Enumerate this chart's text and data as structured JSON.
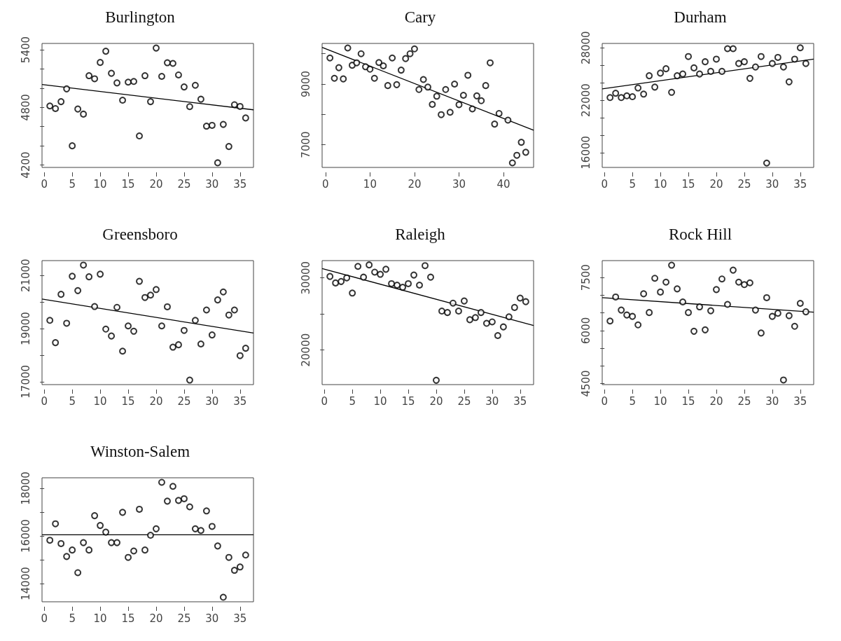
{
  "chart_data": [
    {
      "type": "scatter",
      "title": "Burlington",
      "grid": false,
      "x": [
        1,
        2,
        3,
        4,
        5,
        6,
        7,
        8,
        9,
        10,
        11,
        12,
        13,
        14,
        15,
        16,
        17,
        18,
        19,
        20,
        21,
        22,
        23,
        24,
        25,
        26,
        27,
        28,
        29,
        30,
        31,
        32,
        33,
        34,
        35,
        36
      ],
      "xlim": [
        -0.4,
        37.4
      ],
      "xticks": [
        0,
        5,
        10,
        15,
        20,
        25,
        30,
        35
      ],
      "ylim": [
        4175,
        5466
      ],
      "yticks": [
        4200,
        {
          "value": 4400,
          "label": null
        },
        {
          "value": 4600,
          "label": null
        },
        4800,
        {
          "value": 5000,
          "label": null
        },
        {
          "value": 5200,
          "label": null
        },
        5400
      ],
      "series": [
        {
          "color": "#000000",
          "marker": "circle",
          "values": [
            4815,
            4788,
            4860,
            4993,
            4400,
            4783,
            4730,
            5130,
            5098,
            5268,
            5385,
            5155,
            5055,
            4875,
            5063,
            5070,
            4503,
            5130,
            4860,
            5418,
            5123,
            5265,
            5258,
            5138,
            5013,
            4808,
            5030,
            4885,
            4605,
            4613,
            4223,
            4623,
            4393,
            4828,
            4810,
            4690
          ]
        },
        {
          "type": "line",
          "color": "#000000",
          "marker": "none",
          "x": [
            -0.4,
            37.4
          ],
          "values": [
            5039,
            4775
          ]
        }
      ]
    },
    {
      "type": "scatter",
      "title": "Cary",
      "grid": false,
      "x": [
        1,
        2,
        3,
        4,
        5,
        6,
        7,
        8,
        9,
        10,
        11,
        12,
        13,
        14,
        15,
        16,
        17,
        18,
        19,
        20,
        21,
        22,
        23,
        24,
        25,
        26,
        27,
        28,
        29,
        30,
        31,
        32,
        33,
        34,
        35,
        36,
        37,
        38,
        39,
        41,
        42,
        43,
        44,
        45
      ],
      "xlim": [
        -0.76,
        46.76
      ],
      "xticks": [
        0,
        10,
        20,
        30,
        40
      ],
      "ylim": [
        6250,
        10340
      ],
      "yticks": [
        7000,
        {
          "value": 8000,
          "label": null
        },
        9000,
        {
          "value": 10000,
          "label": null
        }
      ],
      "series": [
        {
          "color": "#000000",
          "marker": "circle",
          "values": [
            9860,
            9190,
            9540,
            9170,
            10190,
            9620,
            9700,
            10000,
            9570,
            9490,
            9190,
            9710,
            9600,
            8950,
            9860,
            8980,
            9460,
            9840,
            10000,
            10160,
            8820,
            9150,
            8900,
            8330,
            8600,
            7990,
            8820,
            8070,
            9000,
            8320,
            8630,
            9290,
            8180,
            8610,
            8450,
            8950,
            9700,
            7680,
            8030,
            7810,
            6400,
            6650,
            7080,
            6750
          ]
        },
        {
          "type": "line",
          "color": "#000000",
          "marker": "none",
          "x": [
            -0.76,
            46.76
          ],
          "values": [
            10210,
            7480
          ]
        }
      ]
    },
    {
      "type": "scatter",
      "title": "Durham",
      "grid": false,
      "x": [
        1,
        2,
        3,
        4,
        5,
        6,
        7,
        8,
        9,
        10,
        11,
        12,
        13,
        14,
        15,
        16,
        17,
        18,
        19,
        20,
        21,
        22,
        23,
        24,
        25,
        26,
        27,
        28,
        29,
        30,
        31,
        32,
        33,
        34,
        35,
        36
      ],
      "xlim": [
        -0.4,
        37.4
      ],
      "xticks": [
        0,
        5,
        10,
        15,
        20,
        25,
        30,
        35
      ],
      "ylim": [
        14300,
        28500
      ],
      "yticks": [
        16000,
        {
          "value": 18000,
          "label": null
        },
        {
          "value": 20000,
          "label": null
        },
        22000,
        {
          "value": 24000,
          "label": null
        },
        {
          "value": 26000,
          "label": null
        },
        28000
      ],
      "series": [
        {
          "color": "#000000",
          "marker": "circle",
          "values": [
            22300,
            22800,
            22300,
            22500,
            22400,
            23400,
            22700,
            24800,
            23500,
            25100,
            25600,
            22900,
            24800,
            25000,
            27000,
            25700,
            25000,
            26400,
            25300,
            26700,
            25300,
            27900,
            27900,
            26200,
            26400,
            24500,
            25800,
            27000,
            14800,
            26200,
            26900,
            25800,
            24100,
            26700,
            28000,
            26200
          ]
        },
        {
          "type": "line",
          "color": "#000000",
          "marker": "none",
          "x": [
            -0.4,
            37.4
          ],
          "values": [
            23300,
            26700
          ]
        }
      ]
    },
    {
      "type": "scatter",
      "title": "Greensboro",
      "grid": false,
      "x": [
        1,
        2,
        3,
        4,
        5,
        6,
        7,
        8,
        9,
        10,
        11,
        12,
        13,
        14,
        15,
        16,
        17,
        18,
        19,
        20,
        21,
        22,
        23,
        24,
        25,
        26,
        27,
        28,
        29,
        30,
        31,
        32,
        33,
        34,
        35,
        36
      ],
      "xlim": [
        -0.4,
        37.4
      ],
      "xticks": [
        0,
        5,
        10,
        15,
        20,
        25,
        30,
        35
      ],
      "ylim": [
        16890,
        21560
      ],
      "yticks": [
        17000,
        {
          "value": 18000,
          "label": null
        },
        19000,
        {
          "value": 20000,
          "label": null
        },
        21000
      ],
      "series": [
        {
          "color": "#000000",
          "marker": "circle",
          "values": [
            19310,
            18470,
            20290,
            19200,
            20970,
            20430,
            21390,
            20950,
            19830,
            21050,
            18980,
            18720,
            19800,
            18150,
            19100,
            18900,
            20780,
            20170,
            20260,
            20470,
            19100,
            19820,
            18300,
            18390,
            18930,
            17060,
            19310,
            18420,
            19700,
            18760,
            20080,
            20380,
            19510,
            19700,
            17980,
            18260
          ]
        },
        {
          "type": "line",
          "color": "#000000",
          "marker": "none",
          "x": [
            -0.4,
            37.4
          ],
          "values": [
            20110,
            18830
          ]
        }
      ]
    },
    {
      "type": "scatter",
      "title": "Raleigh",
      "grid": false,
      "x": [
        1,
        2,
        3,
        4,
        5,
        6,
        7,
        8,
        9,
        10,
        11,
        12,
        13,
        14,
        15,
        16,
        17,
        18,
        19,
        20,
        21,
        22,
        23,
        24,
        25,
        26,
        27,
        28,
        29,
        30,
        31,
        32,
        33,
        34,
        35,
        36
      ],
      "xlim": [
        -0.4,
        37.4
      ],
      "xticks": [
        0,
        5,
        10,
        15,
        20,
        25,
        30,
        35
      ],
      "ylim": [
        15200,
        32400
      ],
      "yticks": [
        20000,
        {
          "value": 25000,
          "label": null
        },
        30000
      ],
      "series": [
        {
          "color": "#000000",
          "marker": "circle",
          "values": [
            30200,
            29300,
            29500,
            30000,
            27900,
            31600,
            30100,
            31800,
            30800,
            30500,
            31200,
            29200,
            29000,
            28700,
            29200,
            30400,
            29000,
            31700,
            30100,
            15800,
            25400,
            25200,
            26500,
            25400,
            26800,
            24200,
            24500,
            25200,
            23700,
            23900,
            22000,
            23200,
            24600,
            25900,
            27200,
            26700
          ]
        },
        {
          "type": "line",
          "color": "#000000",
          "marker": "none",
          "x": [
            -0.4,
            37.4
          ],
          "values": [
            31300,
            23400
          ]
        }
      ]
    },
    {
      "type": "scatter",
      "title": "Rock Hill",
      "grid": false,
      "x": [
        1,
        2,
        3,
        4,
        5,
        6,
        7,
        8,
        9,
        10,
        11,
        12,
        13,
        14,
        15,
        16,
        17,
        18,
        19,
        20,
        21,
        22,
        23,
        24,
        25,
        26,
        27,
        28,
        29,
        30,
        31,
        32,
        33,
        34,
        35,
        36
      ],
      "xlim": [
        -0.4,
        37.4
      ],
      "xticks": [
        0,
        5,
        10,
        15,
        20,
        25,
        30,
        35
      ],
      "ylim": [
        4470,
        7980
      ],
      "yticks": [
        4500,
        {
          "value": 5000,
          "label": null
        },
        {
          "value": 5500,
          "label": null
        },
        6000,
        {
          "value": 6500,
          "label": null
        },
        {
          "value": 7000,
          "label": null
        },
        7500
      ],
      "series": [
        {
          "color": "#000000",
          "marker": "circle",
          "values": [
            6270,
            6950,
            6580,
            6440,
            6400,
            6160,
            7040,
            6510,
            7480,
            7090,
            7370,
            7850,
            7180,
            6810,
            6510,
            5980,
            6670,
            6020,
            6560,
            7160,
            7460,
            6740,
            7710,
            7370,
            7300,
            7350,
            6580,
            5930,
            6930,
            6400,
            6490,
            4600,
            6420,
            6120,
            6770,
            6530
          ]
        },
        {
          "type": "line",
          "color": "#000000",
          "marker": "none",
          "x": [
            -0.4,
            37.4
          ],
          "values": [
            6930,
            6520
          ]
        }
      ]
    },
    {
      "type": "scatter",
      "title": "Winston-Salem",
      "grid": false,
      "x": [
        1,
        2,
        3,
        4,
        5,
        6,
        7,
        8,
        9,
        10,
        11,
        12,
        13,
        14,
        15,
        16,
        17,
        18,
        19,
        20,
        21,
        22,
        23,
        24,
        25,
        26,
        27,
        28,
        29,
        30,
        31,
        32,
        33,
        34,
        35,
        36
      ],
      "xlim": [
        -0.4,
        37.4
      ],
      "xticks": [
        0,
        5,
        10,
        15,
        20,
        25,
        30,
        35
      ],
      "ylim": [
        13240,
        18440
      ],
      "yticks": [
        14000,
        {
          "value": 15000,
          "label": null
        },
        16000,
        {
          "value": 17000,
          "label": null
        },
        18000
      ],
      "series": [
        {
          "color": "#000000",
          "marker": "circle",
          "values": [
            15820,
            16510,
            15680,
            15140,
            15410,
            14460,
            15720,
            15410,
            16850,
            16440,
            16160,
            15720,
            15720,
            16990,
            15100,
            15370,
            17120,
            15410,
            16030,
            16300,
            18250,
            17460,
            18080,
            17490,
            17560,
            17220,
            16300,
            16230,
            17050,
            16400,
            15580,
            13430,
            15100,
            14560,
            14700,
            15200
          ]
        },
        {
          "type": "line",
          "color": "#000000",
          "marker": "none",
          "x": [
            -0.4,
            37.4
          ],
          "values": [
            16050,
            16050
          ]
        }
      ]
    }
  ]
}
